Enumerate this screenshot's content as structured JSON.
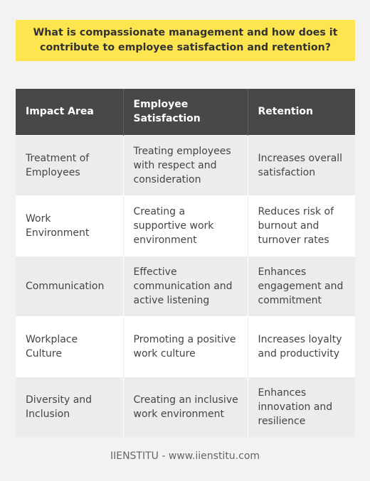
{
  "title": "What is compassionate management and how does it contribute to employee satisfaction and retention?",
  "table": {
    "headers": [
      "Impact Area",
      "Employee Satisfaction",
      "Retention"
    ],
    "rows": [
      [
        "Treatment of Employees",
        "Treating employees with respect and consideration",
        "Increases overall satisfaction"
      ],
      [
        "Work Environment",
        "Creating a supportive work environment",
        "Reduces risk of burnout and turnover rates"
      ],
      [
        "Communication",
        "Effective communication and active listening",
        "Enhances engagement and commitment"
      ],
      [
        "Workplace Culture",
        "Promoting a positive work culture",
        "Increases loyalty and productivity"
      ],
      [
        "Diversity and Inclusion",
        "Creating an inclusive work environment",
        "Enhances innovation and resilience"
      ]
    ]
  },
  "footer": "IIENSTITU - www.iienstitu.com",
  "colors": {
    "title_background": "#fde54f",
    "header_background": "#484848",
    "page_background": "#f2f2f2"
  }
}
